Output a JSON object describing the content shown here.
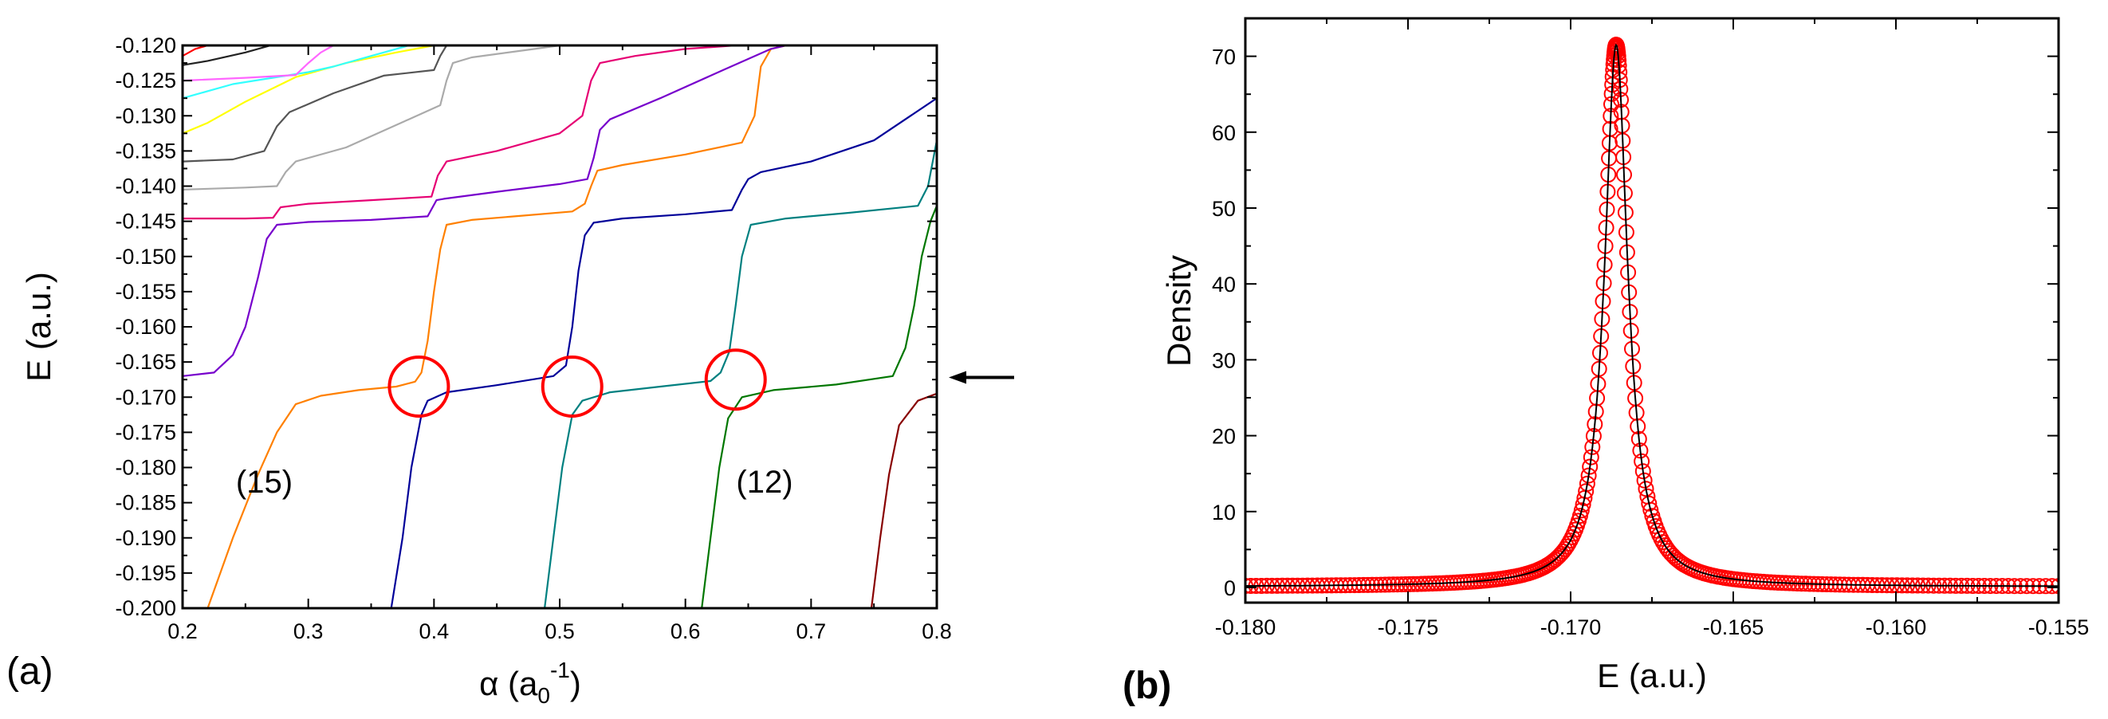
{
  "chart_data": [
    {
      "panel": "(a)",
      "type": "line",
      "xlabel": "α (a0-1)",
      "xlabel_parts": {
        "symbol": "α (a",
        "sub": "0",
        "sup": "-1",
        "close": ")"
      },
      "ylabel": "E (a.u.)",
      "xlim": [
        0.2,
        0.8
      ],
      "ylim": [
        -0.2,
        -0.12
      ],
      "xticks": [
        0.2,
        0.3,
        0.4,
        0.5,
        0.6,
        0.7,
        0.8
      ],
      "xtick_labels": [
        "0.2",
        "0.3",
        "0.4",
        "0.5",
        "0.6",
        "0.7",
        "0.8"
      ],
      "yticks": [
        -0.2,
        -0.195,
        -0.19,
        -0.185,
        -0.18,
        -0.175,
        -0.17,
        -0.165,
        -0.16,
        -0.155,
        -0.15,
        -0.145,
        -0.14,
        -0.135,
        -0.13,
        -0.125,
        -0.12
      ],
      "ytick_labels": [
        "-0.200",
        "-0.195",
        "-0.190",
        "-0.185",
        "-0.180",
        "-0.175",
        "-0.170",
        "-0.165",
        "-0.160",
        "-0.155",
        "-0.150",
        "-0.145",
        "-0.140",
        "-0.135",
        "-0.130",
        "-0.125",
        "-0.120"
      ],
      "annotations": [
        {
          "text": "(15)",
          "x": 0.265,
          "y": -0.182
        },
        {
          "text": "(12)",
          "x": 0.663,
          "y": -0.182
        }
      ],
      "circles": [
        {
          "x": 0.388,
          "y": -0.1685
        },
        {
          "x": 0.51,
          "y": -0.1685
        },
        {
          "x": 0.64,
          "y": -0.1675
        }
      ],
      "arrow": {
        "y": -0.1672
      },
      "series": [
        {
          "name": "orange",
          "color": "#ff8000",
          "points": [
            [
              0.22,
              -0.2
            ],
            [
              0.24,
              -0.19
            ],
            [
              0.26,
              -0.181
            ],
            [
              0.275,
              -0.175
            ],
            [
              0.29,
              -0.171
            ],
            [
              0.31,
              -0.1698
            ],
            [
              0.34,
              -0.169
            ],
            [
              0.37,
              -0.1685
            ],
            [
              0.385,
              -0.1678
            ],
            [
              0.39,
              -0.1665
            ],
            [
              0.395,
              -0.162
            ],
            [
              0.4,
              -0.155
            ],
            [
              0.405,
              -0.149
            ],
            [
              0.41,
              -0.1455
            ],
            [
              0.43,
              -0.1448
            ],
            [
              0.47,
              -0.1442
            ],
            [
              0.51,
              -0.1436
            ],
            [
              0.52,
              -0.1425
            ],
            [
              0.525,
              -0.14
            ],
            [
              0.53,
              -0.1378
            ],
            [
              0.55,
              -0.137
            ],
            [
              0.6,
              -0.1355
            ],
            [
              0.645,
              -0.1338
            ],
            [
              0.655,
              -0.13
            ],
            [
              0.66,
              -0.123
            ],
            [
              0.668,
              -0.1205
            ],
            [
              0.68,
              -0.12
            ]
          ]
        },
        {
          "name": "navy",
          "color": "#000099",
          "points": [
            [
              0.366,
              -0.2
            ],
            [
              0.375,
              -0.19
            ],
            [
              0.382,
              -0.18
            ],
            [
              0.39,
              -0.1725
            ],
            [
              0.395,
              -0.1705
            ],
            [
              0.41,
              -0.1693
            ],
            [
              0.45,
              -0.1683
            ],
            [
              0.495,
              -0.167
            ],
            [
              0.505,
              -0.1655
            ],
            [
              0.51,
              -0.16
            ],
            [
              0.515,
              -0.152
            ],
            [
              0.52,
              -0.147
            ],
            [
              0.527,
              -0.1452
            ],
            [
              0.55,
              -0.1446
            ],
            [
              0.6,
              -0.144
            ],
            [
              0.637,
              -0.1434
            ],
            [
              0.645,
              -0.1405
            ],
            [
              0.65,
              -0.139
            ],
            [
              0.66,
              -0.138
            ],
            [
              0.7,
              -0.1365
            ],
            [
              0.75,
              -0.1335
            ],
            [
              0.8,
              -0.1275
            ]
          ]
        },
        {
          "name": "teal",
          "color": "#008080",
          "points": [
            [
              0.488,
              -0.2
            ],
            [
              0.495,
              -0.19
            ],
            [
              0.502,
              -0.18
            ],
            [
              0.51,
              -0.1725
            ],
            [
              0.518,
              -0.1705
            ],
            [
              0.54,
              -0.1693
            ],
            [
              0.58,
              -0.1685
            ],
            [
              0.62,
              -0.1677
            ],
            [
              0.628,
              -0.1665
            ],
            [
              0.635,
              -0.1635
            ],
            [
              0.64,
              -0.157
            ],
            [
              0.645,
              -0.15
            ],
            [
              0.652,
              -0.1455
            ],
            [
              0.68,
              -0.1446
            ],
            [
              0.73,
              -0.1438
            ],
            [
              0.785,
              -0.1428
            ],
            [
              0.793,
              -0.14
            ],
            [
              0.8,
              -0.1335
            ]
          ]
        },
        {
          "name": "green",
          "color": "#007700",
          "points": [
            [
              0.613,
              -0.2
            ],
            [
              0.62,
              -0.19
            ],
            [
              0.627,
              -0.18
            ],
            [
              0.634,
              -0.173
            ],
            [
              0.645,
              -0.17
            ],
            [
              0.67,
              -0.169
            ],
            [
              0.72,
              -0.1682
            ],
            [
              0.765,
              -0.167
            ],
            [
              0.775,
              -0.163
            ],
            [
              0.782,
              -0.157
            ],
            [
              0.788,
              -0.15
            ],
            [
              0.795,
              -0.145
            ],
            [
              0.8,
              -0.1428
            ]
          ]
        },
        {
          "name": "maroon",
          "color": "#880000",
          "points": [
            [
              0.748,
              -0.2
            ],
            [
              0.755,
              -0.19
            ],
            [
              0.762,
              -0.181
            ],
            [
              0.77,
              -0.174
            ],
            [
              0.785,
              -0.1705
            ],
            [
              0.8,
              -0.1695
            ]
          ]
        },
        {
          "name": "purple",
          "color": "#7700cc",
          "points": [
            [
              0.2,
              -0.167
            ],
            [
              0.225,
              -0.1665
            ],
            [
              0.24,
              -0.164
            ],
            [
              0.25,
              -0.16
            ],
            [
              0.26,
              -0.153
            ],
            [
              0.267,
              -0.1475
            ],
            [
              0.275,
              -0.1455
            ],
            [
              0.3,
              -0.1451
            ],
            [
              0.35,
              -0.1448
            ],
            [
              0.395,
              -0.1443
            ],
            [
              0.402,
              -0.142
            ],
            [
              0.408,
              -0.1418
            ],
            [
              0.45,
              -0.1408
            ],
            [
              0.5,
              -0.1397
            ],
            [
              0.522,
              -0.139
            ],
            [
              0.527,
              -0.136
            ],
            [
              0.532,
              -0.132
            ],
            [
              0.54,
              -0.1305
            ],
            [
              0.58,
              -0.1275
            ],
            [
              0.63,
              -0.1235
            ],
            [
              0.668,
              -0.1205
            ],
            [
              0.68,
              -0.12
            ]
          ]
        },
        {
          "name": "magenta",
          "color": "#e60073",
          "points": [
            [
              0.2,
              -0.1446
            ],
            [
              0.25,
              -0.1446
            ],
            [
              0.272,
              -0.1445
            ],
            [
              0.278,
              -0.143
            ],
            [
              0.3,
              -0.1425
            ],
            [
              0.35,
              -0.142
            ],
            [
              0.398,
              -0.1415
            ],
            [
              0.403,
              -0.1385
            ],
            [
              0.41,
              -0.1365
            ],
            [
              0.45,
              -0.135
            ],
            [
              0.5,
              -0.1325
            ],
            [
              0.518,
              -0.13
            ],
            [
              0.525,
              -0.125
            ],
            [
              0.532,
              -0.1225
            ],
            [
              0.56,
              -0.1215
            ],
            [
              0.6,
              -0.1205
            ],
            [
              0.64,
              -0.12
            ]
          ]
        },
        {
          "name": "lightgray",
          "color": "#aaaaaa",
          "points": [
            [
              0.2,
              -0.1405
            ],
            [
              0.25,
              -0.1402
            ],
            [
              0.275,
              -0.14
            ],
            [
              0.282,
              -0.138
            ],
            [
              0.29,
              -0.1365
            ],
            [
              0.33,
              -0.1345
            ],
            [
              0.38,
              -0.1305
            ],
            [
              0.405,
              -0.1285
            ],
            [
              0.41,
              -0.125
            ],
            [
              0.415,
              -0.1225
            ],
            [
              0.43,
              -0.1217
            ],
            [
              0.48,
              -0.1205
            ],
            [
              0.5,
              -0.12
            ]
          ]
        },
        {
          "name": "darkgray",
          "color": "#555555",
          "points": [
            [
              0.2,
              -0.1365
            ],
            [
              0.24,
              -0.1362
            ],
            [
              0.265,
              -0.135
            ],
            [
              0.275,
              -0.1315
            ],
            [
              0.285,
              -0.1295
            ],
            [
              0.32,
              -0.1268
            ],
            [
              0.36,
              -0.1243
            ],
            [
              0.4,
              -0.1235
            ],
            [
              0.405,
              -0.1215
            ],
            [
              0.41,
              -0.12
            ]
          ]
        },
        {
          "name": "yellow",
          "color": "#ffff00",
          "points": [
            [
              0.2,
              -0.1325
            ],
            [
              0.22,
              -0.131
            ],
            [
              0.25,
              -0.128
            ],
            [
              0.29,
              -0.1245
            ],
            [
              0.33,
              -0.1225
            ],
            [
              0.37,
              -0.121
            ],
            [
              0.4,
              -0.12
            ]
          ]
        },
        {
          "name": "cyan",
          "color": "#33ffff",
          "points": [
            [
              0.2,
              -0.1275
            ],
            [
              0.24,
              -0.1255
            ],
            [
              0.3,
              -0.1238
            ],
            [
              0.32,
              -0.123
            ],
            [
              0.35,
              -0.1215
            ],
            [
              0.38,
              -0.12
            ]
          ]
        },
        {
          "name": "pink",
          "color": "#ff66ff",
          "points": [
            [
              0.2,
              -0.125
            ],
            [
              0.25,
              -0.1246
            ],
            [
              0.29,
              -0.1242
            ],
            [
              0.3,
              -0.1225
            ],
            [
              0.31,
              -0.121
            ],
            [
              0.32,
              -0.12
            ]
          ]
        },
        {
          "name": "black",
          "color": "#222222",
          "points": [
            [
              0.2,
              -0.1228
            ],
            [
              0.22,
              -0.1222
            ],
            [
              0.25,
              -0.121
            ],
            [
              0.27,
              -0.12
            ]
          ]
        },
        {
          "name": "red",
          "color": "#ff0000",
          "points": [
            [
              0.2,
              -0.1215
            ],
            [
              0.21,
              -0.1205
            ],
            [
              0.22,
              -0.12
            ]
          ]
        }
      ]
    },
    {
      "panel": "(b)",
      "type": "scatter",
      "xlabel": "E (a.u.)",
      "ylabel": "Density",
      "xlim": [
        -0.18,
        -0.155
      ],
      "ylim": [
        -2,
        75
      ],
      "xticks": [
        -0.18,
        -0.175,
        -0.17,
        -0.165,
        -0.16,
        -0.155
      ],
      "xtick_labels": [
        "-0.180",
        "-0.175",
        "-0.170",
        "-0.165",
        "-0.160",
        "-0.155"
      ],
      "yticks": [
        0,
        10,
        20,
        30,
        40,
        50,
        60,
        70
      ],
      "ytick_labels": [
        "0",
        "10",
        "20",
        "30",
        "40",
        "50",
        "60",
        "70"
      ],
      "series": [
        {
          "name": "data",
          "marker": "open-circle",
          "color": "#ff0000",
          "peak_center": -0.1686,
          "peak_height": 71.5,
          "half_width": 0.00043,
          "baseline": 0.1,
          "x_start": -0.18,
          "x_end": -0.155,
          "points_count": 301
        },
        {
          "name": "fit",
          "marker": "line",
          "color": "#000000",
          "peak_center": -0.1686,
          "peak_height": 71.5,
          "half_width": 0.00043,
          "baseline": 0.1
        }
      ]
    }
  ]
}
